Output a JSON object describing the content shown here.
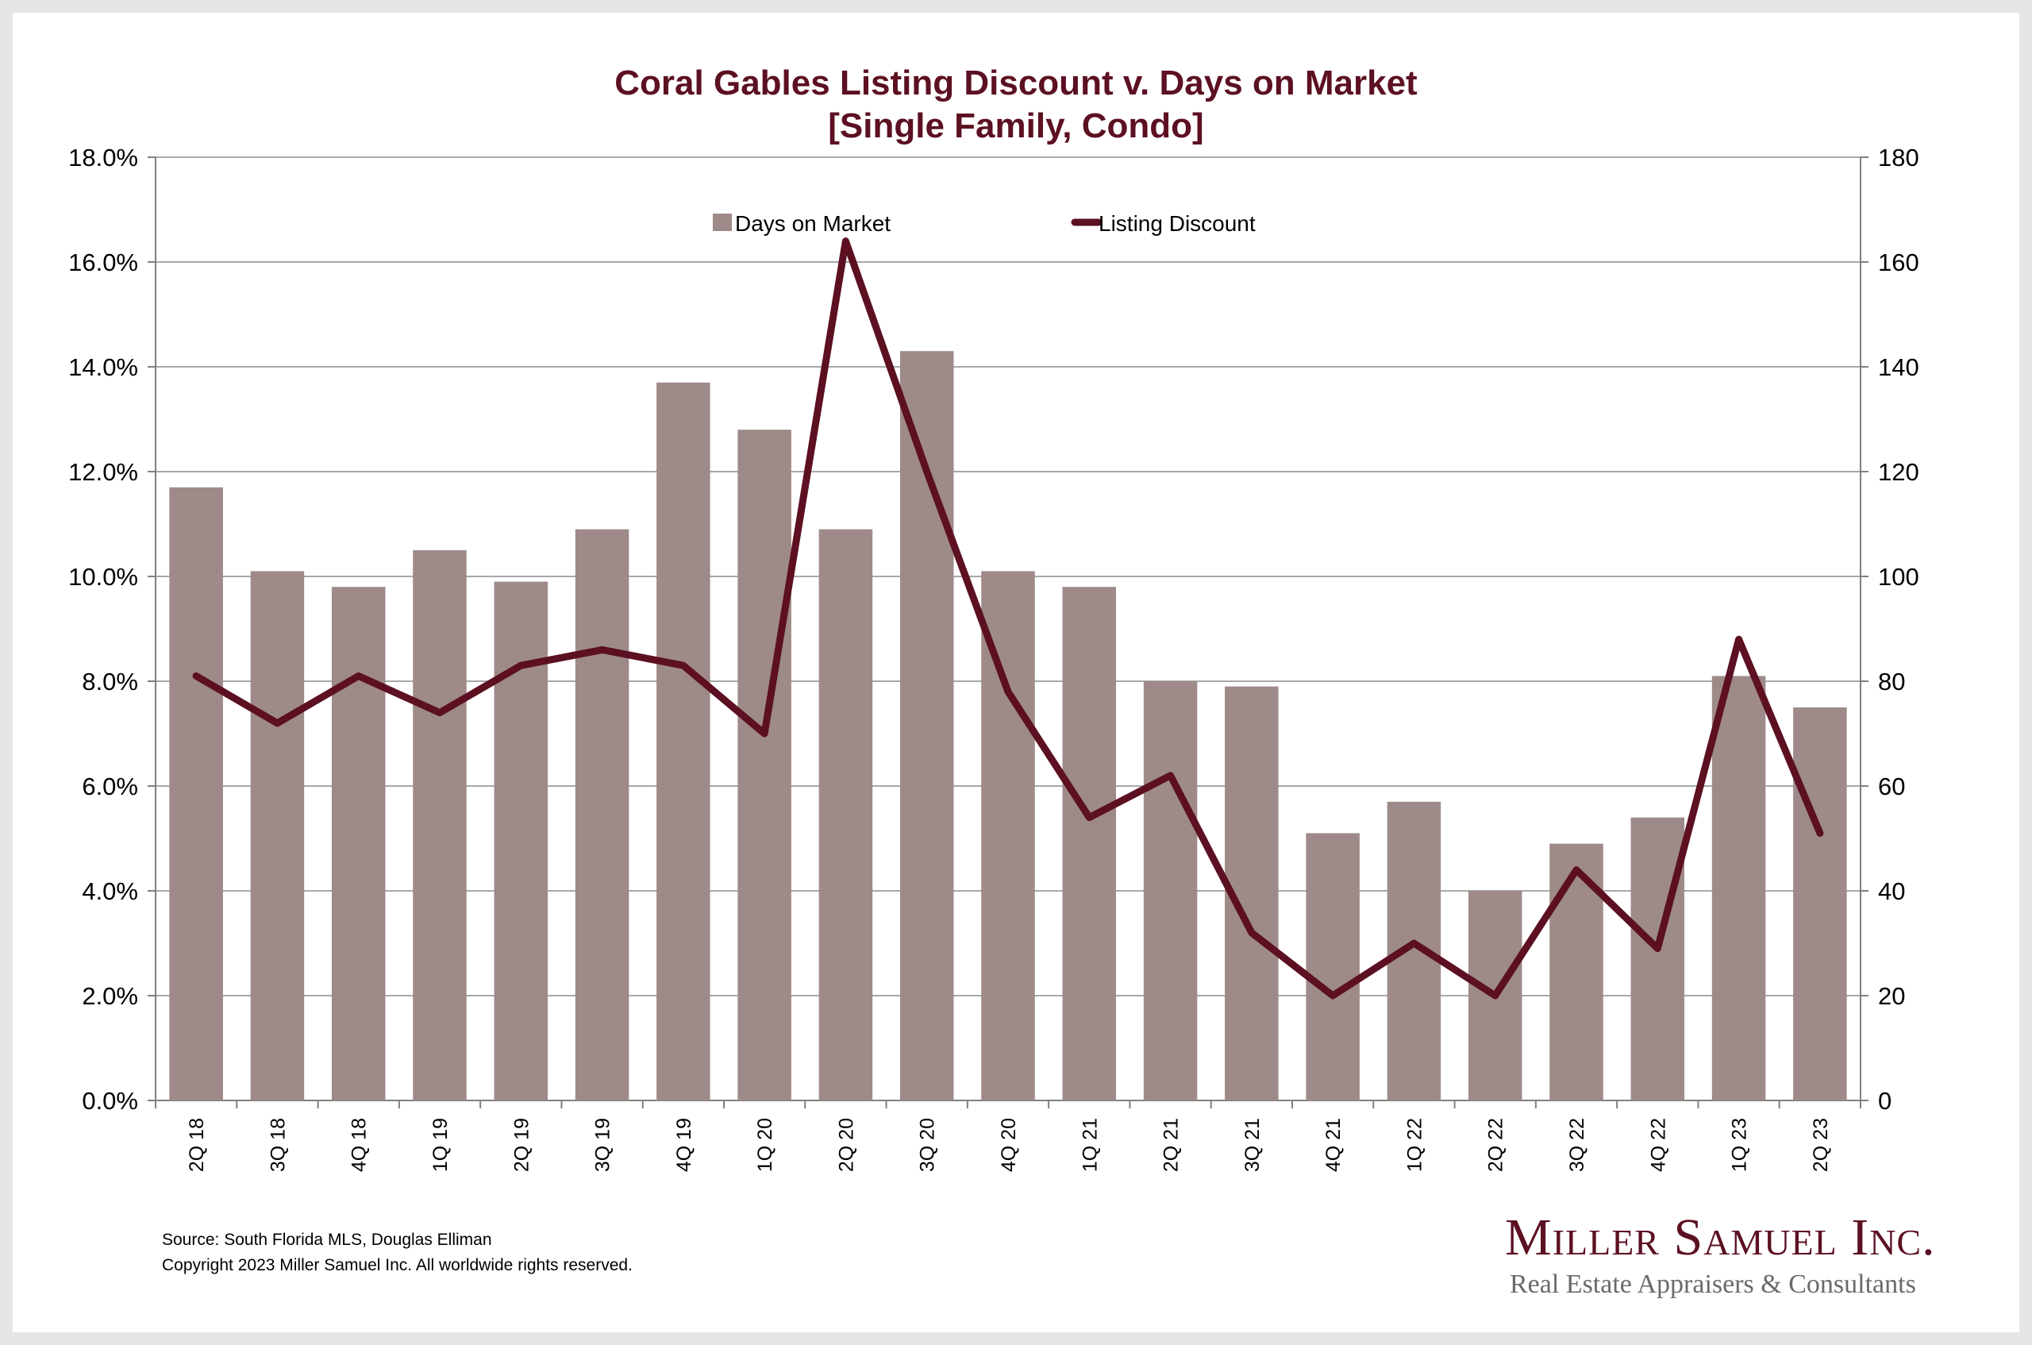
{
  "chart_data": {
    "type": "bar",
    "title": "Coral Gables Listing Discount v. Days on Market",
    "subtitle": "[Single Family, Condo]",
    "categories": [
      "2Q 18",
      "3Q 18",
      "4Q 18",
      "1Q 19",
      "2Q 19",
      "3Q 19",
      "4Q 19",
      "1Q 20",
      "2Q 20",
      "3Q 20",
      "4Q 20",
      "1Q 21",
      "2Q 21",
      "3Q 21",
      "4Q 21",
      "1Q 22",
      "2Q 22",
      "3Q 22",
      "4Q 22",
      "1Q 23",
      "2Q 23"
    ],
    "series": [
      {
        "name": "Days on Market",
        "type": "bar",
        "axis": "right",
        "color": "#9e8a89",
        "values": [
          117,
          101,
          98,
          105,
          99,
          109,
          137,
          128,
          109,
          143,
          101,
          98,
          80,
          79,
          51,
          57,
          40,
          49,
          54,
          81,
          75
        ]
      },
      {
        "name": "Listing Discount",
        "type": "line",
        "axis": "left",
        "color": "#5c1021",
        "values": [
          8.1,
          7.2,
          8.1,
          7.4,
          8.3,
          8.6,
          8.3,
          7.0,
          16.4,
          12.0,
          7.8,
          5.4,
          6.2,
          3.2,
          2.0,
          3.0,
          2.0,
          4.4,
          2.9,
          8.8,
          5.1
        ]
      }
    ],
    "y_left": {
      "ylim": [
        0,
        18
      ],
      "ticks": [
        "0.0%",
        "2.0%",
        "4.0%",
        "6.0%",
        "8.0%",
        "10.0%",
        "12.0%",
        "14.0%",
        "16.0%",
        "18.0%"
      ]
    },
    "y_right": {
      "ylim": [
        0,
        180
      ],
      "ticks": [
        "0",
        "20",
        "40",
        "60",
        "80",
        "100",
        "120",
        "140",
        "160",
        "180"
      ]
    },
    "grid": true,
    "legend": "top"
  },
  "footer": {
    "source": "Source: South Florida MLS, Douglas Elliman",
    "copyright": "Copyright 2023 Miller Samuel Inc.  All worldwide rights reserved."
  },
  "logo": {
    "name": "Miller Samuel Inc.",
    "tagline": "Real Estate Appraisers & Consultants"
  }
}
